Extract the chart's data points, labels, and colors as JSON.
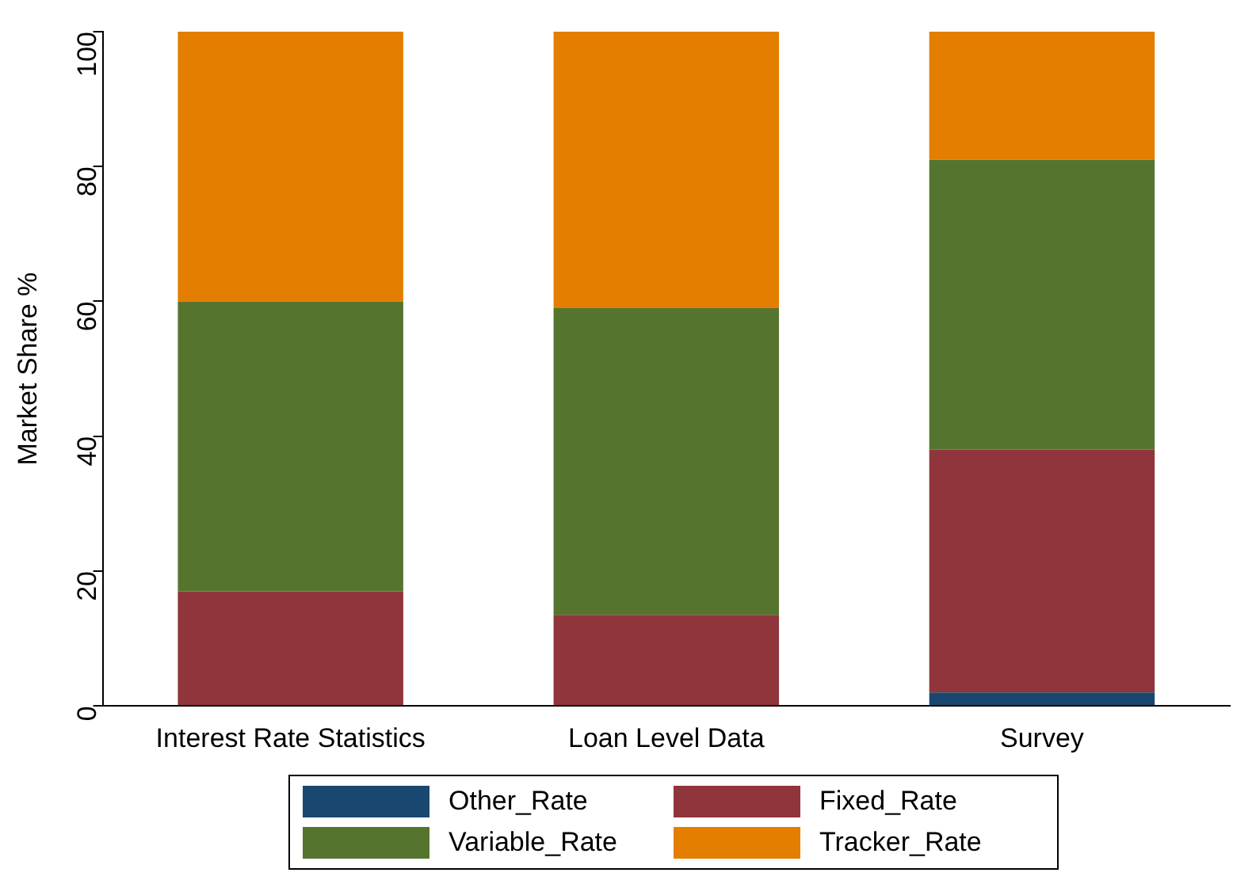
{
  "chart_data": {
    "type": "bar",
    "stacked": true,
    "ylabel": "Market Share %",
    "categories": [
      "Interest Rate Statistics",
      "Loan Level Data",
      "Survey"
    ],
    "series": [
      {
        "name": "Other_Rate",
        "color": "#1a476f",
        "values": [
          0,
          0,
          2
        ]
      },
      {
        "name": "Fixed_Rate",
        "color": "#90353b",
        "values": [
          17,
          13.5,
          36
        ]
      },
      {
        "name": "Variable_Rate",
        "color": "#55752f",
        "values": [
          43,
          45.5,
          43
        ]
      },
      {
        "name": "Tracker_Rate",
        "color": "#e37e00",
        "values": [
          40,
          41,
          19
        ]
      }
    ],
    "ylim": [
      0,
      100
    ],
    "yticks": [
      0,
      20,
      40,
      60,
      80,
      100
    ],
    "grid": false,
    "legend": "bottom"
  }
}
